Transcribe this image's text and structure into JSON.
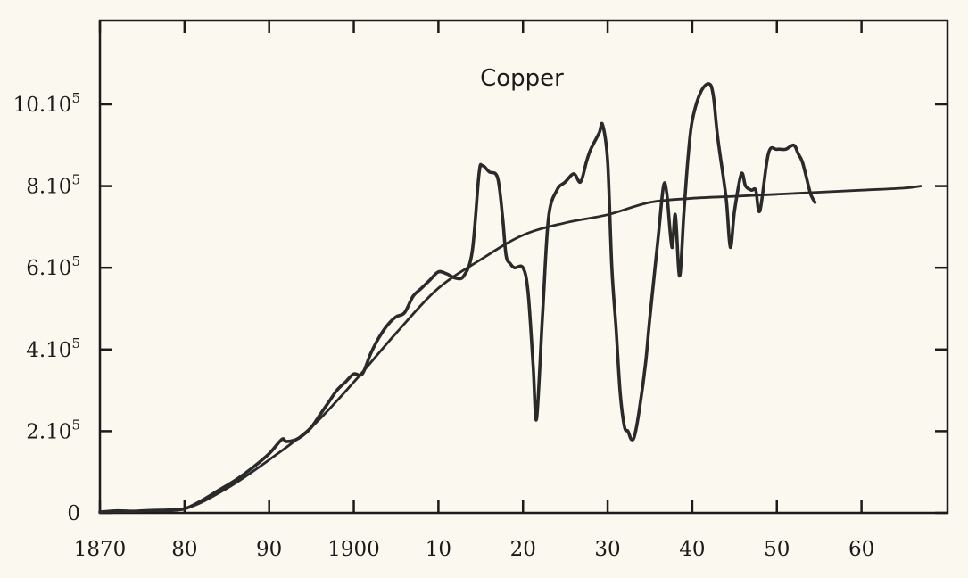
{
  "chart_data": {
    "type": "line",
    "title": "",
    "xlabel": "",
    "ylabel": "",
    "annotations": [
      "Copper"
    ],
    "xlim": [
      1870,
      1967
    ],
    "ylim": [
      0,
      1000000
    ],
    "grid": false,
    "x_ticks": [
      {
        "value": 1870,
        "label": "1870"
      },
      {
        "value": 1880,
        "label": "80"
      },
      {
        "value": 1890,
        "label": "90"
      },
      {
        "value": 1900,
        "label": "1900"
      },
      {
        "value": 1910,
        "label": "10"
      },
      {
        "value": 1920,
        "label": "20"
      },
      {
        "value": 1930,
        "label": "30"
      },
      {
        "value": 1940,
        "label": "40"
      },
      {
        "value": 1950,
        "label": "50"
      },
      {
        "value": 1960,
        "label": "60"
      }
    ],
    "y_ticks": [
      {
        "value": 0,
        "label": "0",
        "sup": ""
      },
      {
        "value": 200000,
        "label": "2.10",
        "sup": "5"
      },
      {
        "value": 400000,
        "label": "4.10",
        "sup": "5"
      },
      {
        "value": 600000,
        "label": "6.10",
        "sup": "5"
      },
      {
        "value": 800000,
        "label": "8.10",
        "sup": "5"
      },
      {
        "value": 1000000,
        "label": "10.10",
        "sup": "5"
      }
    ],
    "series": [
      {
        "kind": "observed",
        "x": [
          1870,
          1872,
          1874,
          1876,
          1878,
          1880,
          1882,
          1884,
          1886,
          1888,
          1890,
          1891.5,
          1892,
          1893,
          1894,
          1895,
          1896,
          1897,
          1898,
          1899,
          1900,
          1901,
          1902,
          1903,
          1904,
          1905,
          1906,
          1907,
          1908,
          1909,
          1910,
          1911,
          1912,
          1913,
          1914,
          1914.8,
          1915.2,
          1916,
          1917,
          1917.6,
          1918,
          1918.5,
          1919,
          1920,
          1920.6,
          1921.2,
          1921.6,
          1922.3,
          1923,
          1924,
          1925,
          1926,
          1926.8,
          1927.5,
          1928,
          1929,
          1929.4,
          1930,
          1930.5,
          1931,
          1931.5,
          1932,
          1932.4,
          1932.8,
          1933.2,
          1933.8,
          1934.5,
          1935,
          1936,
          1936.6,
          1937,
          1937.6,
          1938,
          1938.5,
          1939,
          1939.5,
          1940,
          1941,
          1942,
          1942.5,
          1943,
          1944,
          1944.5,
          1945,
          1945.8,
          1946.3,
          1947,
          1947.5,
          1948,
          1949,
          1950,
          1951,
          1952,
          1952.5,
          1953,
          1953.5,
          1954,
          1954.5
        ],
        "y": [
          2000,
          5000,
          4000,
          6000,
          7000,
          10000,
          30000,
          55000,
          80000,
          110000,
          145000,
          180000,
          175000,
          178000,
          190000,
          210000,
          240000,
          270000,
          300000,
          320000,
          340000,
          340000,
          390000,
          430000,
          460000,
          480000,
          490000,
          530000,
          550000,
          570000,
          590000,
          585000,
          575000,
          580000,
          640000,
          830000,
          850000,
          835000,
          820000,
          720000,
          630000,
          610000,
          600000,
          600000,
          540000,
          360000,
          230000,
          480000,
          720000,
          790000,
          810000,
          830000,
          810000,
          860000,
          890000,
          930000,
          950000,
          860000,
          600000,
          450000,
          290000,
          210000,
          200000,
          180000,
          190000,
          260000,
          370000,
          480000,
          680000,
          800000,
          780000,
          650000,
          730000,
          580000,
          730000,
          870000,
          960000,
          1030000,
          1050000,
          1020000,
          920000,
          770000,
          650000,
          740000,
          830000,
          800000,
          790000,
          790000,
          740000,
          880000,
          890000,
          890000,
          900000,
          880000,
          860000,
          820000,
          780000,
          760000
        ]
      },
      {
        "kind": "fitted",
        "x": [
          1870,
          1875,
          1880,
          1885,
          1890,
          1895,
          1900,
          1905,
          1910,
          1915,
          1920,
          1925,
          1930,
          1935,
          1940,
          1945,
          1950,
          1955,
          1960,
          1965,
          1967
        ],
        "y": [
          1000,
          5000,
          10000,
          60000,
          130000,
          210000,
          320000,
          440000,
          550000,
          620000,
          680000,
          710000,
          730000,
          760000,
          770000,
          775000,
          780000,
          785000,
          790000,
          795000,
          800000
        ]
      }
    ]
  }
}
